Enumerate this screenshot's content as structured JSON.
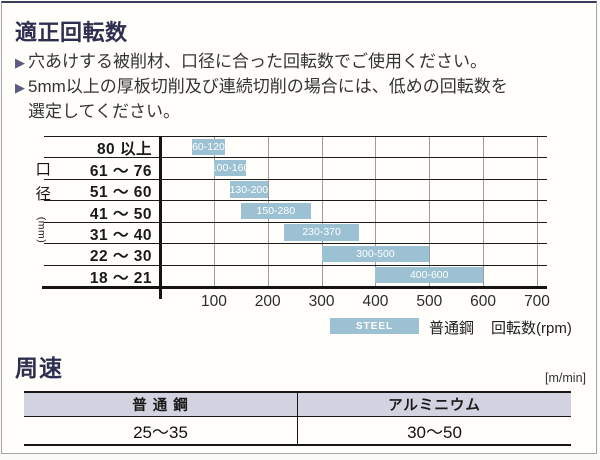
{
  "rotation_section": {
    "title": "適正回転数",
    "bullet_marker": "▶",
    "bullets": [
      "穴あけする被削材、口径に合った回転数でご使用ください。",
      "5mm以上の厚板切削及び連続切削の場合には、低めの回転数を選定してください。"
    ]
  },
  "chart_data": {
    "type": "bar",
    "subtype": "horizontal-range-bars",
    "y_axis_label": "口径(mm)",
    "x_axis_label": "回転数(rpm)",
    "categories": [
      "80 以上",
      "61 ～ 76",
      "51 ～ 60",
      "41 ～ 50",
      "31 ～ 40",
      "22 ～ 30",
      "18 ～ 21"
    ],
    "series": [
      {
        "name": "普通鋼",
        "swatch_text": "STEEL",
        "ranges_rpm": [
          [
            60,
            120
          ],
          [
            100,
            160
          ],
          [
            130,
            200
          ],
          [
            150,
            280
          ],
          [
            230,
            370
          ],
          [
            300,
            500
          ],
          [
            400,
            600
          ]
        ]
      }
    ],
    "xlim": [
      0,
      700
    ],
    "x_ticks": [
      100,
      200,
      300,
      400,
      500,
      600,
      700
    ],
    "grid": "vertical",
    "legend_position": "bottom-right",
    "bar_color": "#9cc1d3",
    "bar_label_color": "#ffffff"
  },
  "speed_section": {
    "title": "周速",
    "unit": "[m/min]",
    "table": {
      "headers": [
        "普 通 鋼",
        "アルミニウム"
      ],
      "rows": [
        [
          "25～35",
          "30～50"
        ]
      ]
    }
  }
}
